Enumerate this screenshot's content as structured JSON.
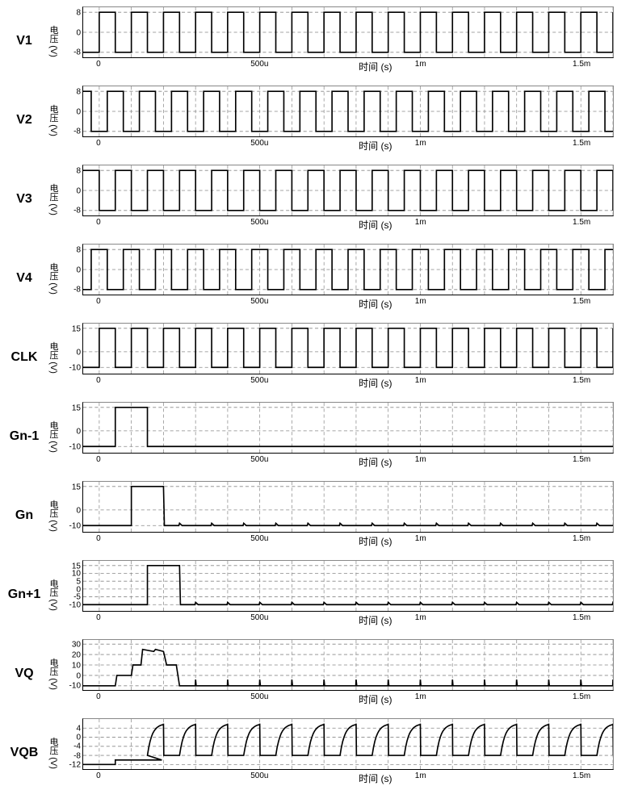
{
  "global": {
    "x_axis": {
      "label": "时间 (s)",
      "min": -50,
      "max": 1600,
      "ticks": [
        {
          "v": 0,
          "label": "0"
        },
        {
          "v": 500,
          "label": "500u"
        },
        {
          "v": 1000,
          "label": "1m"
        },
        {
          "v": 1500,
          "label": "1.5m"
        }
      ],
      "xlabel_pos_pct": 52
    },
    "y_axis_label": "电压 (V)",
    "grid_color": "#888888",
    "grid_dash": "4,3",
    "background_color": "#ffffff",
    "trace_color": "#000000",
    "trace_width": 1.6,
    "font_size_signal": 16,
    "font_size_tick": 10,
    "font_size_ylabel": 11,
    "font_size_xlabel": 12,
    "clock_period": 100,
    "clock_duty": 0.5
  },
  "panels": [
    {
      "name": "V1",
      "ylim": [
        -10,
        10
      ],
      "yticks": [
        {
          "v": 8,
          "label": "8"
        },
        {
          "v": 0,
          "label": "0"
        },
        {
          "v": -8,
          "label": "-8"
        }
      ],
      "signal": {
        "type": "square",
        "low": -8,
        "high": 8,
        "period": 100,
        "duty": 0.5,
        "phase": 0,
        "start": -50
      }
    },
    {
      "name": "V2",
      "ylim": [
        -10,
        10
      ],
      "yticks": [
        {
          "v": 8,
          "label": "8"
        },
        {
          "v": 0,
          "label": "0"
        },
        {
          "v": -8,
          "label": "-8"
        }
      ],
      "signal": {
        "type": "square",
        "low": -8,
        "high": 8,
        "period": 100,
        "duty": 0.5,
        "phase": 25,
        "start": -50
      }
    },
    {
      "name": "V3",
      "ylim": [
        -10,
        10
      ],
      "yticks": [
        {
          "v": 8,
          "label": "8"
        },
        {
          "v": 0,
          "label": "0"
        },
        {
          "v": -8,
          "label": "-8"
        }
      ],
      "signal": {
        "type": "square",
        "low": -8,
        "high": 8,
        "period": 100,
        "duty": 0.5,
        "phase": 50,
        "start": -50
      }
    },
    {
      "name": "V4",
      "ylim": [
        -10,
        10
      ],
      "yticks": [
        {
          "v": 8,
          "label": "8"
        },
        {
          "v": 0,
          "label": "0"
        },
        {
          "v": -8,
          "label": "-8"
        }
      ],
      "signal": {
        "type": "square",
        "low": -8,
        "high": 8,
        "period": 100,
        "duty": 0.5,
        "phase": 75,
        "start": -50
      }
    },
    {
      "name": "CLK",
      "ylim": [
        -14,
        18
      ],
      "yticks": [
        {
          "v": 15,
          "label": "15"
        },
        {
          "v": 0,
          "label": "0"
        },
        {
          "v": -10,
          "label": "-10"
        }
      ],
      "signal": {
        "type": "square",
        "low": -10,
        "high": 15,
        "period": 100,
        "duty": 0.5,
        "phase": 0,
        "start": -50
      }
    },
    {
      "name": "Gn-1",
      "ylim": [
        -14,
        18
      ],
      "yticks": [
        {
          "v": 15,
          "label": "15"
        },
        {
          "v": 0,
          "label": "0"
        },
        {
          "v": -10,
          "label": "-10"
        }
      ],
      "signal": {
        "type": "pulse",
        "low": -10,
        "high": 15,
        "pulses": [
          {
            "start": 50,
            "end": 150
          }
        ]
      }
    },
    {
      "name": "Gn",
      "ylim": [
        -14,
        18
      ],
      "yticks": [
        {
          "v": 15,
          "label": "15"
        },
        {
          "v": 0,
          "label": "0"
        },
        {
          "v": -10,
          "label": "-10"
        }
      ],
      "signal": {
        "type": "pulse_ripple",
        "low": -10,
        "high": 15,
        "pulses": [
          {
            "start": 100,
            "end": 200
          }
        ],
        "ripple_period": 100,
        "ripple_start": 250,
        "ripple_amp": 1.5
      }
    },
    {
      "name": "Gn+1",
      "ylim": [
        -14,
        18
      ],
      "yticks": [
        {
          "v": 15,
          "label": "15"
        },
        {
          "v": 10,
          "label": "10"
        },
        {
          "v": 5,
          "label": "5"
        },
        {
          "v": 0,
          "label": "0"
        },
        {
          "v": -5,
          "label": "-5"
        },
        {
          "v": -10,
          "label": "-10"
        }
      ],
      "signal": {
        "type": "pulse_ripple",
        "low": -10,
        "high": 15,
        "pulses": [
          {
            "start": 150,
            "end": 250
          }
        ],
        "ripple_period": 100,
        "ripple_start": 300,
        "ripple_amp": 1.5
      }
    },
    {
      "name": "VQ",
      "ylim": [
        -14,
        34
      ],
      "yticks": [
        {
          "v": 30,
          "label": "30"
        },
        {
          "v": 20,
          "label": "20"
        },
        {
          "v": 10,
          "label": "10"
        },
        {
          "v": 0,
          "label": "0"
        },
        {
          "v": -10,
          "label": "-10"
        }
      ],
      "signal": {
        "type": "vq",
        "low": -10,
        "steps": [
          {
            "t": -50,
            "v": -10
          },
          {
            "t": 50,
            "v": -10
          },
          {
            "t": 55,
            "v": 0
          },
          {
            "t": 100,
            "v": 0
          },
          {
            "t": 105,
            "v": 10
          },
          {
            "t": 130,
            "v": 10
          },
          {
            "t": 135,
            "v": 25
          },
          {
            "t": 170,
            "v": 23
          },
          {
            "t": 175,
            "v": 25
          },
          {
            "t": 200,
            "v": 23
          },
          {
            "t": 210,
            "v": 10
          },
          {
            "t": 240,
            "v": 10
          },
          {
            "t": 250,
            "v": -10
          }
        ],
        "spike_period": 100,
        "spike_start": 300,
        "spike_amp": 6
      }
    },
    {
      "name": "VQB",
      "ylim": [
        -14,
        8
      ],
      "yticks": [
        {
          "v": 4,
          "label": "4"
        },
        {
          "v": 0,
          "label": "0"
        },
        {
          "v": -4,
          "label": "-4"
        },
        {
          "v": -8,
          "label": "-8"
        },
        {
          "v": -12,
          "label": "-12"
        }
      ],
      "signal": {
        "type": "vqb",
        "low": -12,
        "mid": -10,
        "high": 6,
        "step_t": 50,
        "rc_start": 200,
        "rc_period": 100,
        "rc_rise": 50,
        "fall_level": -8
      }
    }
  ]
}
